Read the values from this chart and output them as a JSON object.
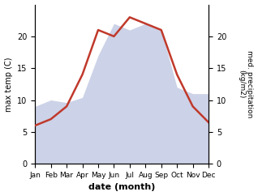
{
  "months": [
    "Jan",
    "Feb",
    "Mar",
    "Apr",
    "May",
    "Jun",
    "Jul",
    "Aug",
    "Sep",
    "Oct",
    "Nov",
    "Dec"
  ],
  "temp_max": [
    6.0,
    7.0,
    9.0,
    14.0,
    21.0,
    20.0,
    23.0,
    22.0,
    21.0,
    14.0,
    9.0,
    6.5
  ],
  "precipitation": [
    45,
    50,
    48,
    52,
    85,
    110,
    105,
    110,
    105,
    60,
    55,
    55
  ],
  "temp_color": "#c0392b",
  "precip_fill_color": "#aab4d8",
  "precip_fill_alpha": 0.6,
  "ylim_temp": [
    0,
    25
  ],
  "ylim_precip": [
    0,
    125
  ],
  "yticks_temp": [
    0,
    5,
    10,
    15,
    20
  ],
  "yticks_precip_vals": [
    0,
    5,
    10,
    15,
    20
  ],
  "yticks_precip_raw": [
    0,
    25,
    50,
    75,
    100
  ],
  "xlabel": "date (month)",
  "ylabel_left": "max temp (C)",
  "ylabel_right": "med. precipitation\n(kg/m2)",
  "background_color": "#ffffff",
  "figsize": [
    3.18,
    2.42
  ],
  "dpi": 100
}
